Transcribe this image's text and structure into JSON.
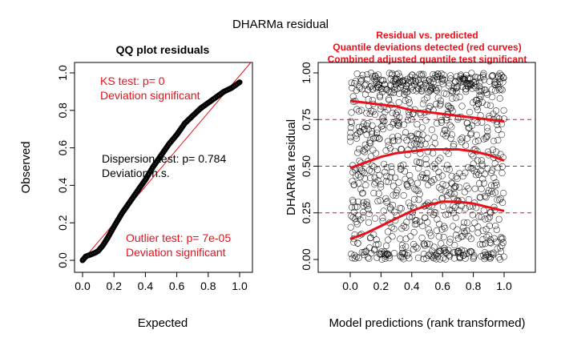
{
  "figure": {
    "title": "DHARMa residual"
  },
  "colors": {
    "axis": "#000000",
    "red": "#e8101a",
    "point": "#000000"
  },
  "chart_data": [
    {
      "type": "scatter",
      "panel": "left",
      "title": "QQ plot residuals",
      "xlabel": "Expected",
      "ylabel": "Observed",
      "xlim": [
        0,
        1
      ],
      "ylim": [
        0,
        1
      ],
      "xticks": [
        "0.0",
        "0.2",
        "0.4",
        "0.6",
        "0.8",
        "1.0"
      ],
      "yticks": [
        "0.0",
        "0.2",
        "0.4",
        "0.6",
        "0.8",
        "1.0"
      ],
      "reference_line": {
        "from": [
          0,
          0
        ],
        "to": [
          1,
          1
        ],
        "color": "#e8101a"
      },
      "qq_curve": {
        "x": [
          0.0,
          0.02,
          0.05,
          0.08,
          0.1,
          0.13,
          0.16,
          0.2,
          0.25,
          0.3,
          0.35,
          0.4,
          0.45,
          0.5,
          0.55,
          0.6,
          0.65,
          0.7,
          0.75,
          0.8,
          0.85,
          0.9,
          0.95,
          1.0
        ],
        "y": [
          0.0,
          0.02,
          0.03,
          0.04,
          0.05,
          0.08,
          0.12,
          0.18,
          0.25,
          0.31,
          0.37,
          0.43,
          0.5,
          0.56,
          0.62,
          0.67,
          0.73,
          0.77,
          0.81,
          0.84,
          0.87,
          0.9,
          0.92,
          0.95
        ]
      },
      "annotations": {
        "ks_test": "KS test: p= 0",
        "ks_result": "Deviation  significant",
        "dispersion_test": "Dispersion test: p= 0.784",
        "dispersion_result": "Deviation  n.s.",
        "outlier_test": "Outlier test: p= 7e-05",
        "outlier_result": "Deviation  significant"
      }
    },
    {
      "type": "scatter",
      "panel": "right",
      "title_lines": [
        "Residual vs. predicted",
        "Quantile deviations detected (red curves)",
        "Combined adjusted quantile test significant"
      ],
      "xlabel": "Model predictions (rank transformed)",
      "ylabel": "DHARMa residual",
      "xlim": [
        0,
        1
      ],
      "ylim": [
        0,
        1
      ],
      "xticks": [
        "0.0",
        "0.2",
        "0.4",
        "0.6",
        "0.8",
        "1.0"
      ],
      "yticks": [
        "0.00",
        "0.25",
        "0.50",
        "0.75",
        "1.00"
      ],
      "reference_lines": [
        0.25,
        0.5,
        0.75
      ],
      "n_points": 1000,
      "quantile_curves": [
        {
          "quantile": 0.25,
          "x": [
            0.0,
            0.1,
            0.2,
            0.3,
            0.4,
            0.5,
            0.6,
            0.7,
            0.8,
            0.9,
            1.0
          ],
          "y": [
            0.11,
            0.14,
            0.18,
            0.22,
            0.26,
            0.29,
            0.31,
            0.31,
            0.3,
            0.28,
            0.26
          ]
        },
        {
          "quantile": 0.5,
          "x": [
            0.0,
            0.1,
            0.2,
            0.3,
            0.4,
            0.5,
            0.6,
            0.7,
            0.8,
            0.9,
            1.0
          ],
          "y": [
            0.49,
            0.52,
            0.55,
            0.57,
            0.58,
            0.59,
            0.59,
            0.59,
            0.58,
            0.56,
            0.53
          ]
        },
        {
          "quantile": 0.75,
          "x": [
            0.0,
            0.1,
            0.2,
            0.3,
            0.4,
            0.5,
            0.6,
            0.7,
            0.8,
            0.9,
            1.0
          ],
          "y": [
            0.85,
            0.84,
            0.83,
            0.82,
            0.8,
            0.79,
            0.78,
            0.77,
            0.76,
            0.75,
            0.74
          ]
        }
      ]
    }
  ]
}
